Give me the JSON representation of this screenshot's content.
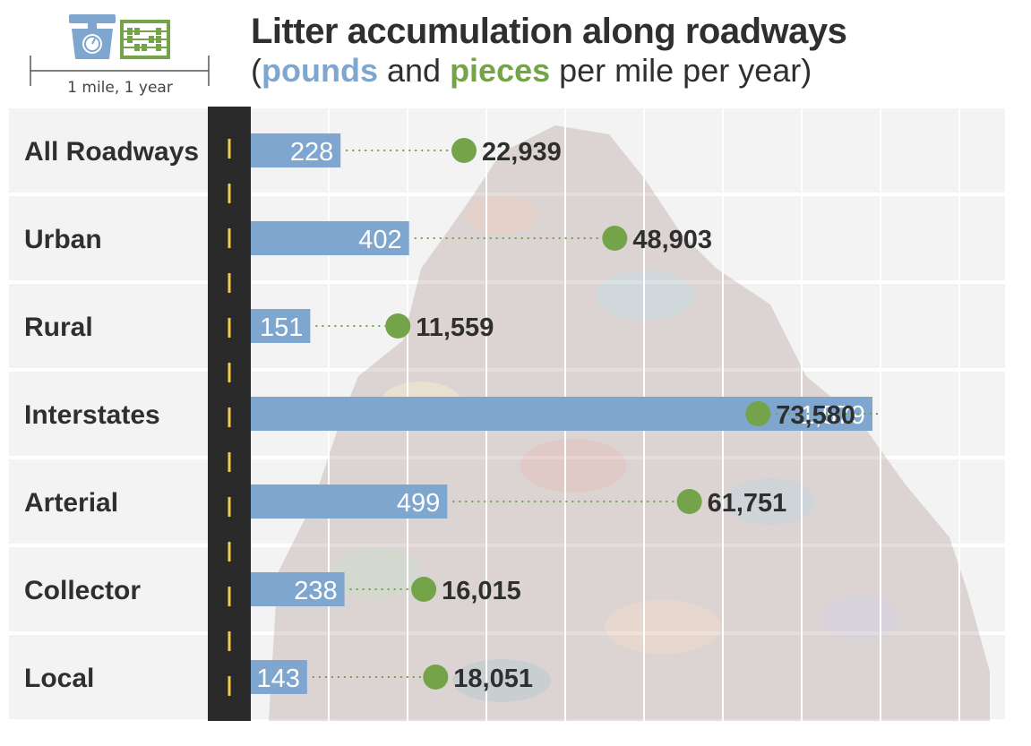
{
  "header": {
    "title": "Litter accumulation along roadways",
    "subtitle_open": "(",
    "subtitle_pounds": "pounds",
    "subtitle_and": " and ",
    "subtitle_pieces": "pieces",
    "subtitle_rest": " per mile per year)",
    "unit_label": "1 mile, 1 year",
    "icons": [
      "scale-icon",
      "abacus-icon"
    ]
  },
  "colors": {
    "pounds_bar": "#7ea6cf",
    "pieces_dot": "#74a34a",
    "road": "#2a2a2a",
    "road_line": "#f2c94c",
    "row_bg": "#f3f3f3",
    "text": "#2f2f2f"
  },
  "chart_data": {
    "type": "bar",
    "title": "Litter accumulation along roadways",
    "subtitle": "(pounds and pieces per mile per year)",
    "categories": [
      "All Roadways",
      "Urban",
      "Rural",
      "Interstates",
      "Arterial",
      "Collector",
      "Local"
    ],
    "series": [
      {
        "name": "pounds",
        "values": [
          228,
          402,
          151,
          1579,
          499,
          238,
          143
        ],
        "labels": [
          "228",
          "402",
          "151",
          "1,579",
          "499",
          "238",
          "143"
        ]
      },
      {
        "name": "pieces",
        "values": [
          22939,
          48903,
          11559,
          73580,
          61751,
          16015,
          18051
        ],
        "labels": [
          "22,939",
          "48,903",
          "11,559",
          "73,580",
          "61,751",
          "16,015",
          "18,051"
        ]
      }
    ],
    "orientation": "horizontal",
    "grid": true
  }
}
